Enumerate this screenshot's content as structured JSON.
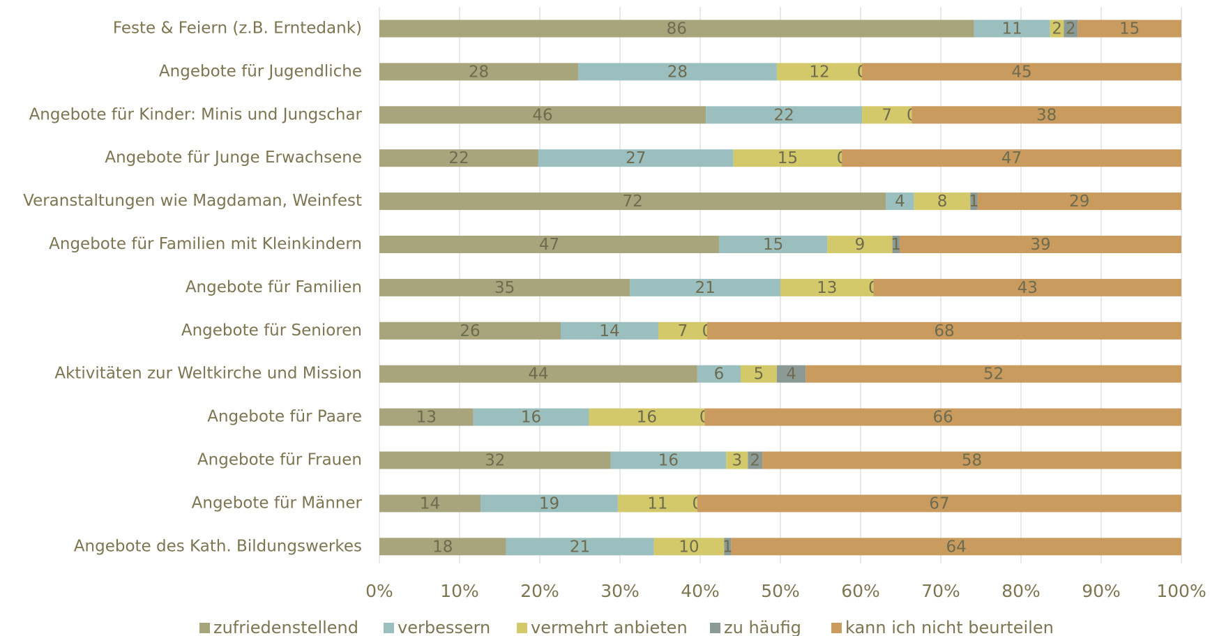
{
  "chart_data": {
    "type": "bar",
    "orientation": "horizontal",
    "stacking": "percent",
    "categories": [
      "Feste & Feiern (z.B. Erntedank)",
      "Angebote für Jugendliche",
      "Angebote für Kinder: Minis und Jungschar",
      "Angebote für Junge Erwachsene",
      "Veranstaltungen wie Magdaman, Weinfest",
      "Angebote für Familien mit Kleinkindern",
      "Angebote für Familien",
      "Angebote für Senioren",
      "Aktivitäten zur Weltkirche und Mission",
      "Angebote für Paare",
      "Angebote für Frauen",
      "Angebote für Männer",
      "Angebote des Kath. Bildungswerkes"
    ],
    "series": [
      {
        "name": "zufriedenstellend",
        "color": "#a8a57c",
        "values": [
          86,
          28,
          46,
          22,
          72,
          47,
          35,
          26,
          44,
          13,
          32,
          14,
          18
        ]
      },
      {
        "name": "verbessern",
        "color": "#9bbfbf",
        "values": [
          11,
          28,
          22,
          27,
          4,
          15,
          21,
          14,
          6,
          16,
          16,
          19,
          21
        ]
      },
      {
        "name": "vermehrt anbieten",
        "color": "#d4c96a",
        "values": [
          2,
          12,
          7,
          15,
          8,
          9,
          13,
          7,
          5,
          16,
          3,
          11,
          10
        ]
      },
      {
        "name": "zu häufig",
        "color": "#8c9a96",
        "values": [
          2,
          0,
          0,
          0,
          1,
          1,
          0,
          0,
          4,
          0,
          2,
          0,
          1
        ]
      },
      {
        "name": "kann ich nicht beurteilen",
        "color": "#c99b5e",
        "values": [
          15,
          45,
          38,
          47,
          29,
          39,
          43,
          68,
          52,
          66,
          58,
          67,
          64
        ]
      }
    ],
    "xlim": [
      0,
      100
    ],
    "xticks": [
      {
        "value": 0,
        "label": "0%"
      },
      {
        "value": 10,
        "label": "10%"
      },
      {
        "value": 20,
        "label": "20%"
      },
      {
        "value": 30,
        "label": "30%"
      },
      {
        "value": 40,
        "label": "40%"
      },
      {
        "value": 50,
        "label": "50%"
      },
      {
        "value": 60,
        "label": "60%"
      },
      {
        "value": 70,
        "label": "70%"
      },
      {
        "value": 80,
        "label": "80%"
      },
      {
        "value": 90,
        "label": "90%"
      },
      {
        "value": 100,
        "label": "100%"
      }
    ],
    "grid": true,
    "legend": "bottom"
  }
}
